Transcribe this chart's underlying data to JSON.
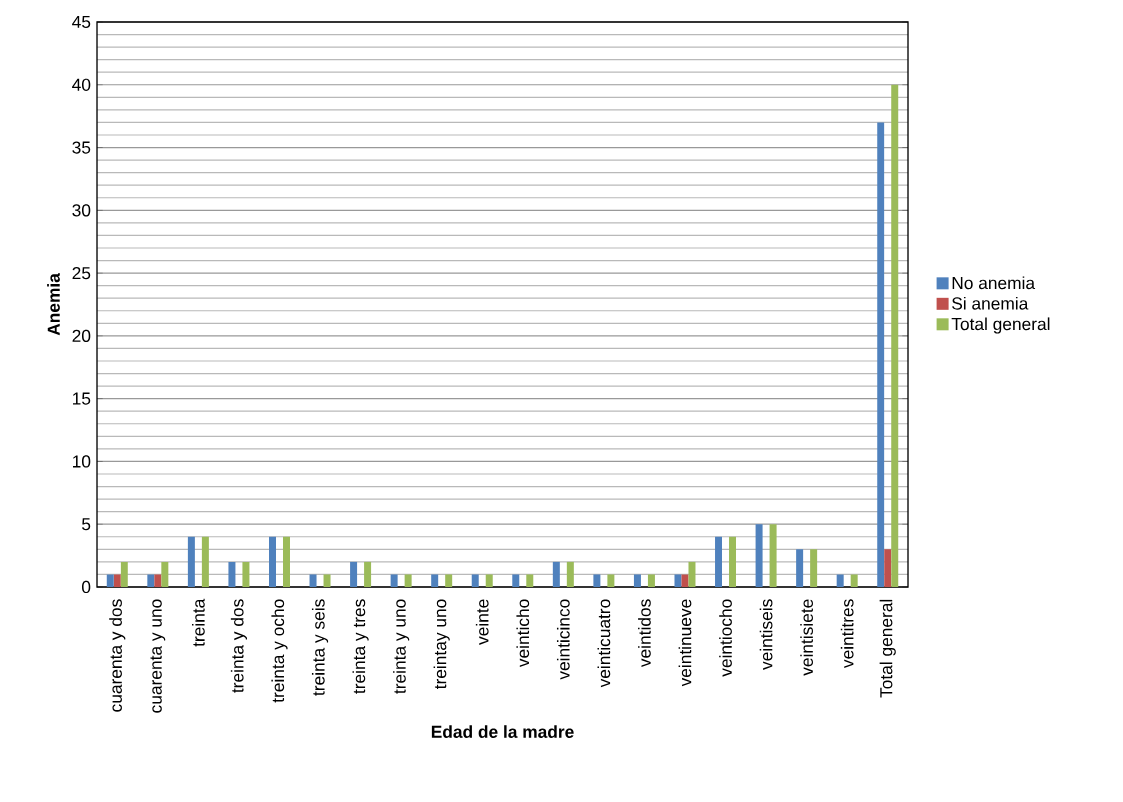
{
  "chart_data": {
    "type": "bar",
    "xlabel": "Edad de la madre",
    "ylabel": "Anemia",
    "categories": [
      "cuarenta y dos",
      "cuarenta y uno",
      "treinta",
      "treinta y dos",
      "treinta y ocho",
      "treinta y seis",
      "treinta y tres",
      "treinta y uno",
      "treintay uno",
      "veinte",
      "veinticho",
      "veinticinco",
      "veinticuatro",
      "veintidos",
      "veintinueve",
      "veintiocho",
      "veintiseis",
      "veintisiete",
      "veintitres",
      "Total general"
    ],
    "series": [
      {
        "name": "No anemia",
        "color": "#4f81bd",
        "values": [
          1,
          1,
          4,
          2,
          4,
          1,
          2,
          1,
          1,
          1,
          1,
          2,
          1,
          1,
          1,
          4,
          5,
          3,
          1,
          37
        ]
      },
      {
        "name": "Si anemia",
        "color": "#c0504d",
        "values": [
          1,
          1,
          null,
          null,
          null,
          null,
          null,
          null,
          null,
          null,
          null,
          null,
          null,
          null,
          1,
          null,
          null,
          null,
          null,
          3
        ]
      },
      {
        "name": "Total general",
        "color": "#9bbb59",
        "values": [
          2,
          2,
          4,
          2,
          4,
          1,
          2,
          1,
          1,
          1,
          1,
          2,
          1,
          1,
          2,
          4,
          5,
          3,
          1,
          40
        ]
      }
    ],
    "ylim": [
      0,
      45
    ],
    "yticks": [
      0,
      5,
      10,
      15,
      20,
      25,
      30,
      35,
      40,
      45
    ],
    "grid": "y",
    "legend": "right"
  }
}
